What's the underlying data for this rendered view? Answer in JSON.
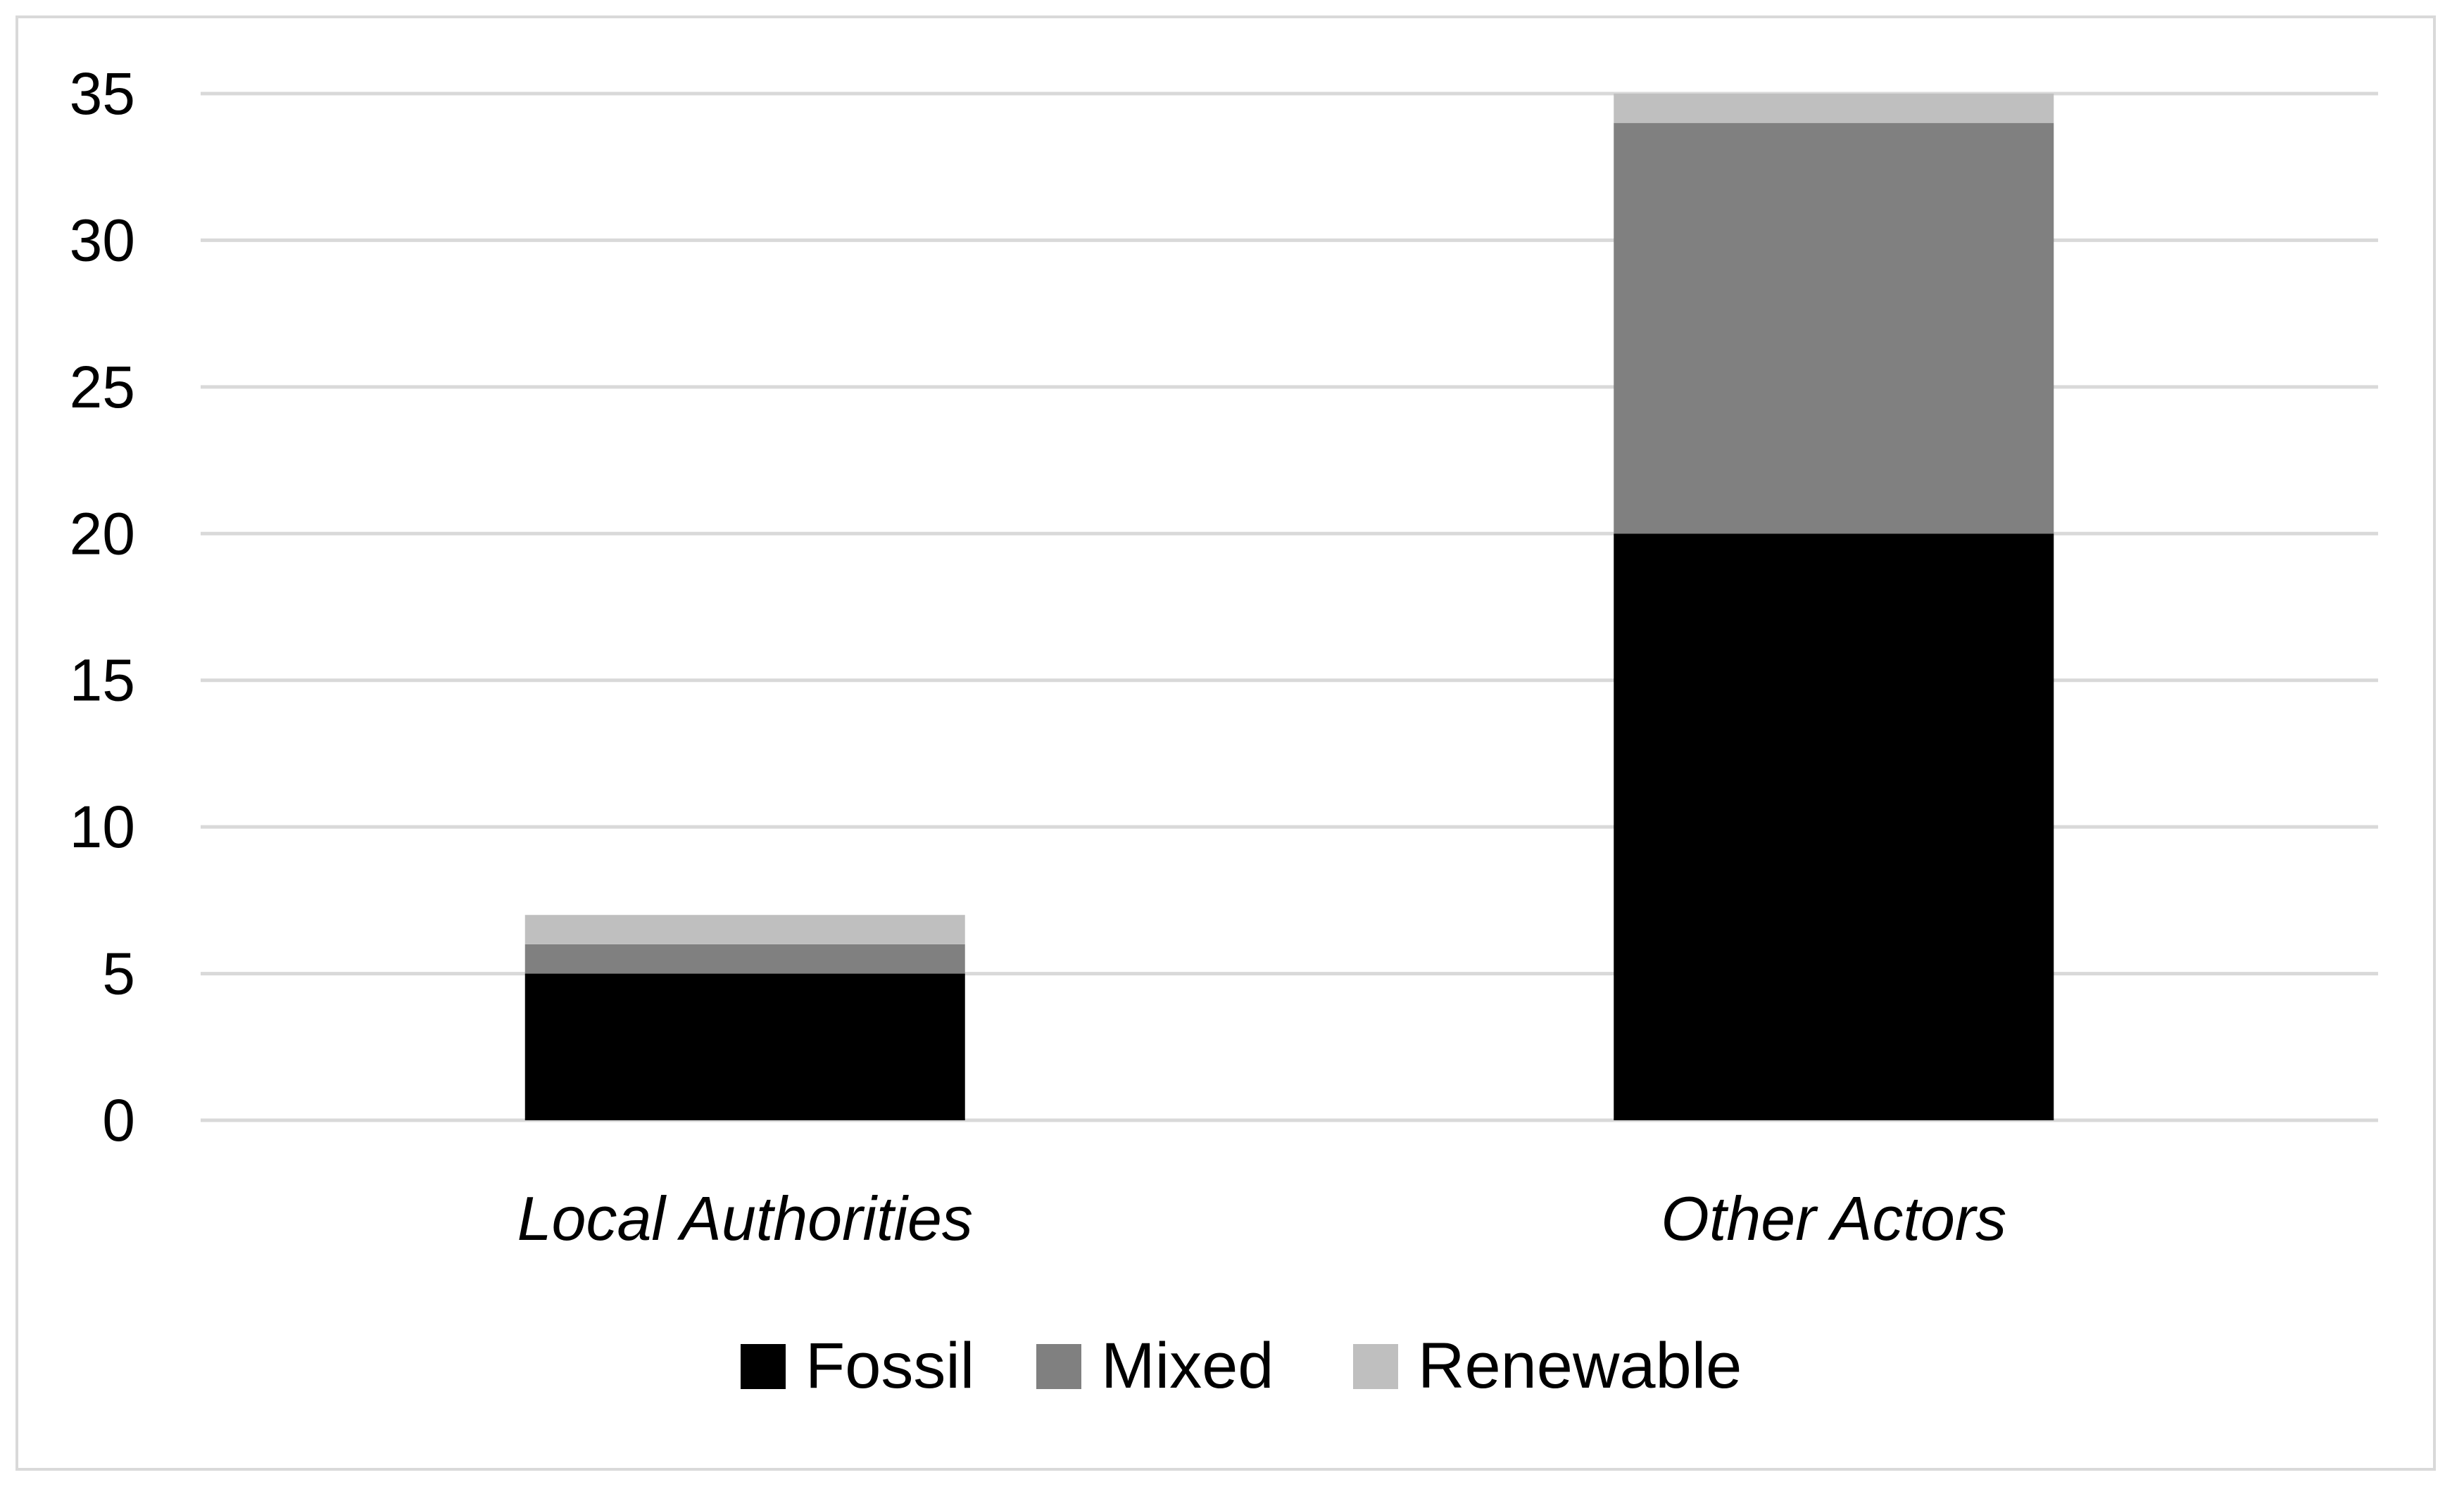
{
  "chart_data": {
    "type": "bar",
    "stacked": true,
    "title": "",
    "xlabel": "",
    "ylabel": "",
    "categories": [
      "Local Authorities",
      "Other Actors"
    ],
    "series": [
      {
        "name": "Fossil",
        "values": [
          5,
          20
        ],
        "color": "#000000"
      },
      {
        "name": "Mixed",
        "values": [
          1,
          14
        ],
        "color": "#808080"
      },
      {
        "name": "Renewable",
        "values": [
          1,
          1
        ],
        "color": "#bfbfbf"
      }
    ],
    "ylim": [
      0,
      35
    ],
    "yticks": [
      0,
      5,
      10,
      15,
      20,
      25,
      30,
      35
    ],
    "grid": true,
    "gridline_color": "#d9d9d9",
    "legend_position": "bottom"
  }
}
